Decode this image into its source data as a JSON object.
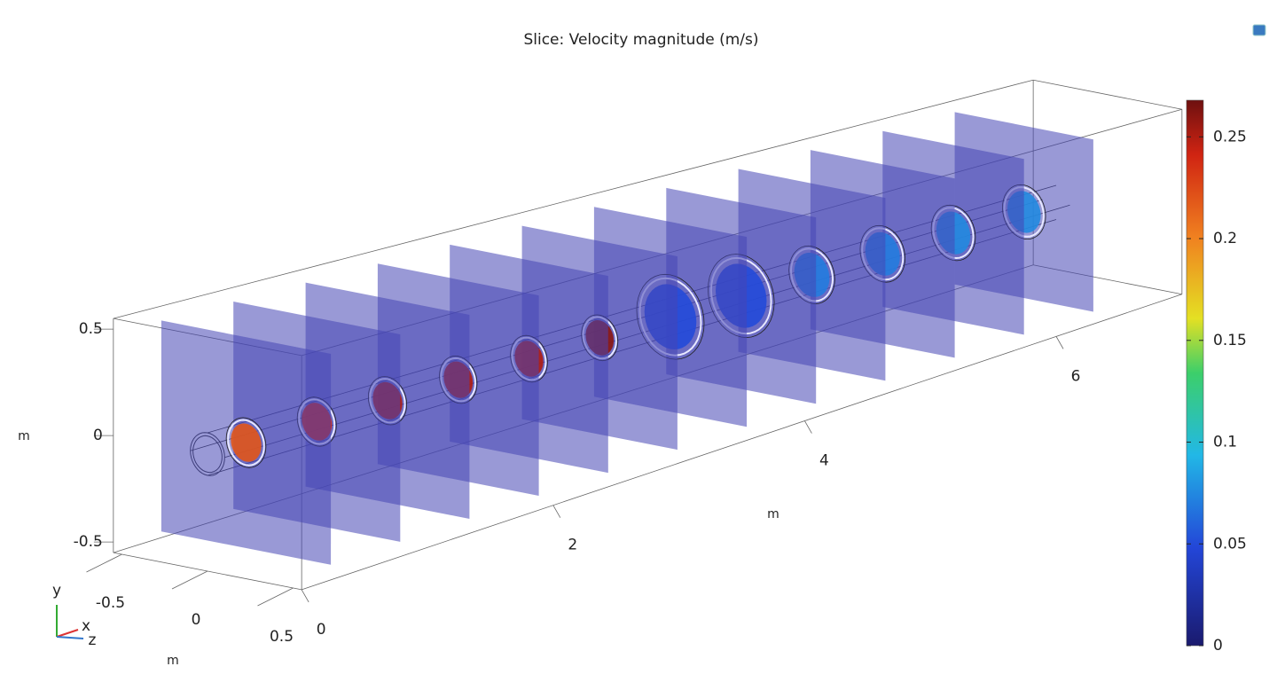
{
  "chart_data": {
    "type": "slice",
    "title": "Slice: Velocity magnitude (m/s)",
    "x": [
      0.3,
      0.85,
      1.4,
      1.95,
      2.5,
      3.05,
      3.6,
      4.15,
      4.7,
      5.25,
      5.8,
      6.35
    ],
    "values": [
      0.22,
      0.24,
      0.25,
      0.25,
      0.25,
      0.26,
      0.05,
      0.05,
      0.07,
      0.07,
      0.075,
      0.075
    ],
    "xlabel": "m",
    "ylabel": "m",
    "zlabel": "m",
    "xlim": [
      0,
      7
    ],
    "ylim": [
      -0.55,
      0.55
    ],
    "zlim": [
      -0.55,
      0.55
    ],
    "xticks": [
      0,
      2,
      4,
      6
    ],
    "yticks": [
      -0.5,
      0,
      0.5
    ],
    "zticks": [
      -0.5,
      0,
      0.5
    ],
    "colorbar": {
      "lim": [
        0,
        0.268
      ],
      "ticks": [
        0,
        0.05,
        0.1,
        0.15,
        0.2,
        0.25
      ]
    },
    "triad": {
      "x": "x",
      "y": "y",
      "z": "z"
    }
  }
}
